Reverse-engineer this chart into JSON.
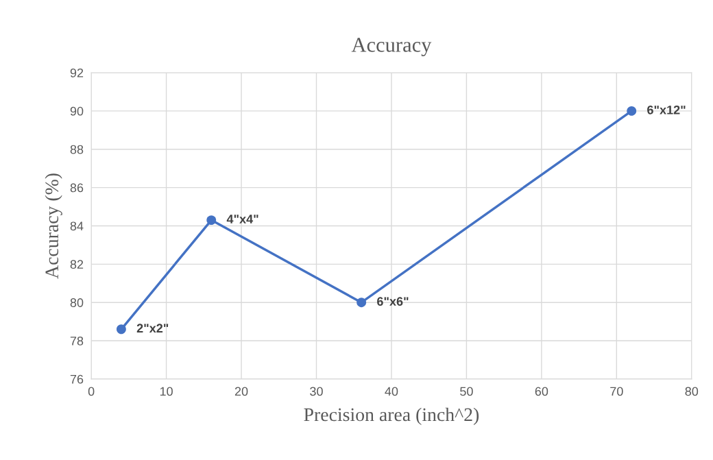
{
  "chart_data": {
    "type": "line",
    "title": "Accuracy",
    "xlabel": "Precision area (inch^2)",
    "ylabel": "Accuracy (%)",
    "x": [
      4,
      16,
      36,
      72
    ],
    "series": [
      {
        "color": "#4472c4",
        "values": [
          78.6,
          84.3,
          80.0,
          90.0
        ]
      }
    ],
    "xlim": [
      0,
      80
    ],
    "xticks": [
      0,
      10,
      20,
      30,
      40,
      50,
      60,
      70,
      80
    ],
    "ylim": [
      76,
      92
    ],
    "yticks": [
      76,
      78,
      80,
      82,
      84,
      86,
      88,
      90,
      92
    ],
    "grid": true,
    "marker": "circle",
    "line_style": "solid",
    "annotations": [
      {
        "text": "2\"x2\"",
        "x": 4,
        "y": 78.6
      },
      {
        "text": "4\"x4\"",
        "x": 16,
        "y": 84.3
      },
      {
        "text": "6\"x6\"",
        "x": 36,
        "y": 80.0
      },
      {
        "text": "6\"x12\"",
        "x": 72,
        "y": 90.0
      }
    ]
  }
}
